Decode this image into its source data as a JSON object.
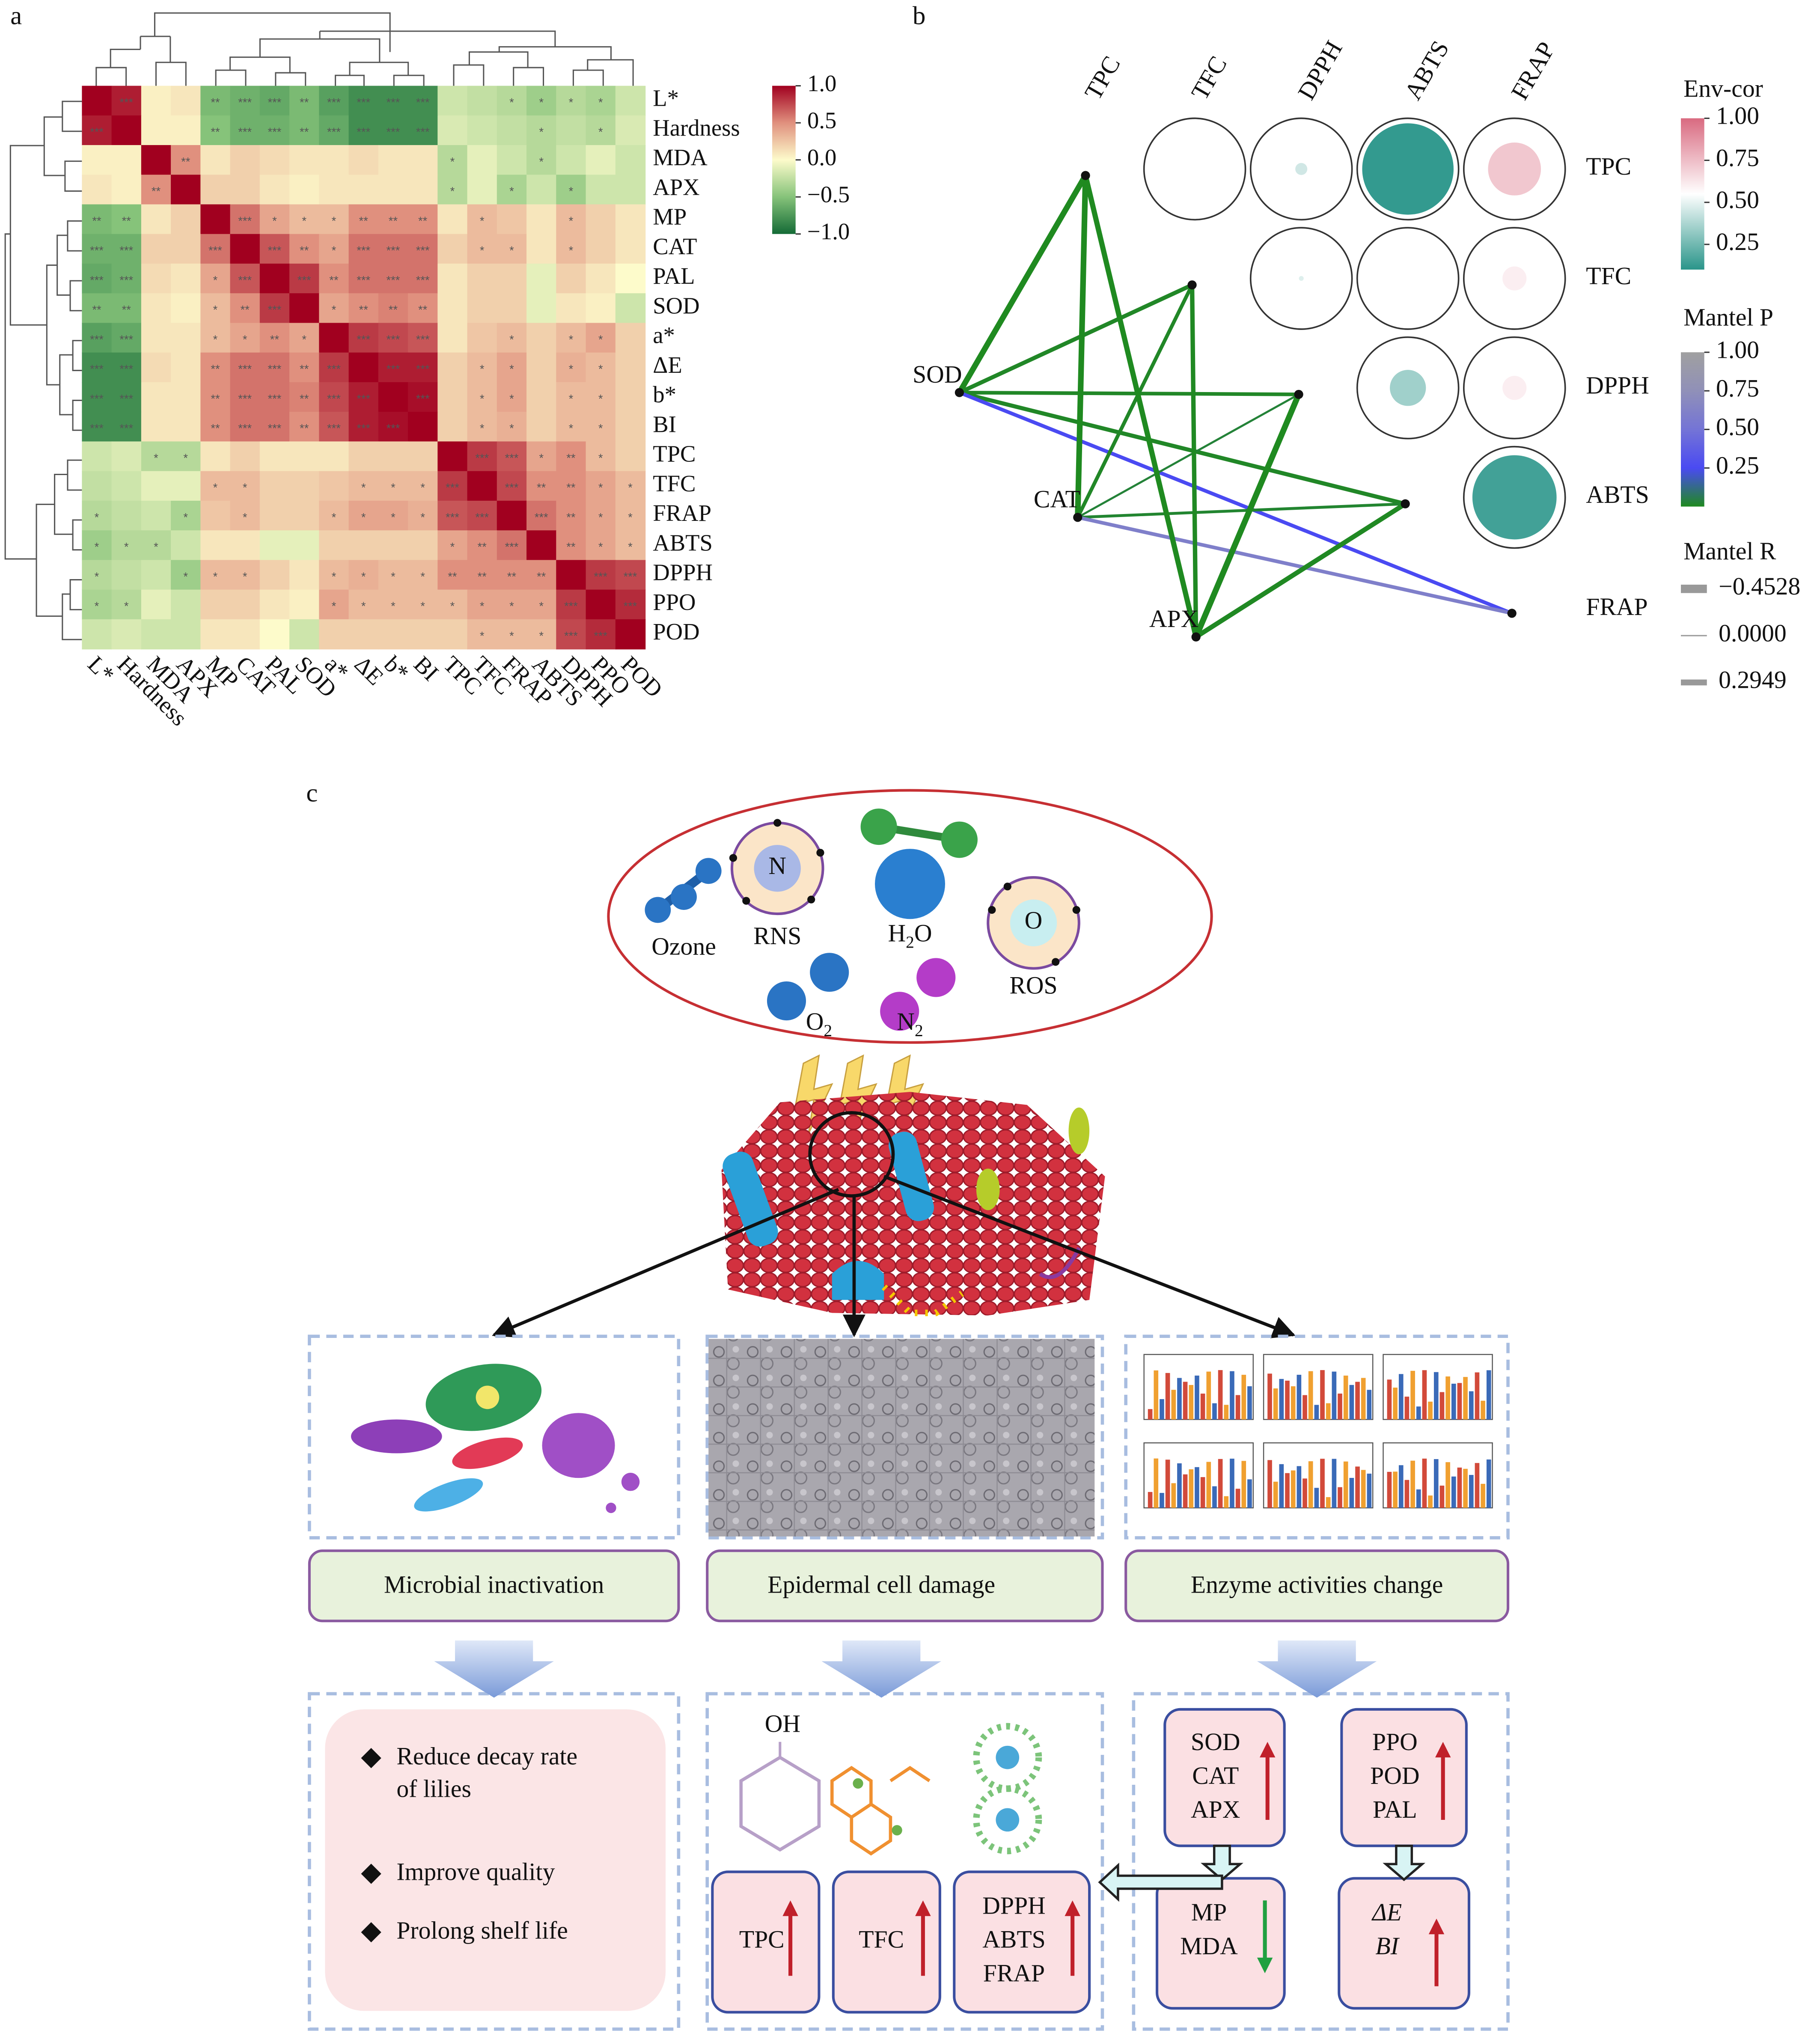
{
  "chart_data": [
    {
      "type": "heatmap",
      "panel": "a",
      "rows": [
        "L*",
        "Hardness",
        "MDA",
        "APX",
        "MP",
        "CAT",
        "PAL",
        "SOD",
        "a*",
        "ΔE",
        "b*",
        "BI",
        "TPC",
        "TFC",
        "FRAP",
        "ABTS",
        "DPPH",
        "PPO",
        "POD"
      ],
      "columns": [
        "L*",
        "Hardness",
        "MDA",
        "APX",
        "MP",
        "CAT",
        "PAL",
        "SOD",
        "a*",
        "ΔE",
        "b*",
        "BI",
        "TPC",
        "TFC",
        "FRAP",
        "ABTS",
        "DPPH",
        "PPO",
        "POD"
      ],
      "values": [
        [
          1,
          0.9,
          0.05,
          0.1,
          -0.55,
          -0.6,
          -0.65,
          -0.55,
          -0.7,
          -0.8,
          -0.8,
          -0.8,
          -0.2,
          -0.25,
          -0.3,
          -0.4,
          -0.3,
          -0.35,
          -0.2
        ],
        [
          0.9,
          1,
          0.05,
          0.05,
          -0.5,
          -0.6,
          -0.6,
          -0.55,
          -0.65,
          -0.8,
          -0.8,
          -0.8,
          -0.15,
          -0.2,
          -0.25,
          -0.3,
          -0.25,
          -0.3,
          -0.15
        ],
        [
          0.05,
          0.05,
          1,
          0.5,
          0.1,
          0.2,
          0.15,
          0.1,
          0.1,
          0.15,
          0.1,
          0.1,
          -0.3,
          -0.1,
          -0.2,
          -0.3,
          -0.2,
          -0.1,
          -0.2
        ],
        [
          0.1,
          0.05,
          0.5,
          1,
          0.2,
          0.2,
          0.1,
          0.05,
          0.1,
          0.1,
          0.1,
          0.1,
          -0.3,
          -0.1,
          -0.35,
          -0.2,
          -0.4,
          -0.2,
          -0.2
        ],
        [
          -0.55,
          -0.5,
          0.1,
          0.2,
          1,
          0.6,
          0.4,
          0.3,
          0.3,
          0.5,
          0.5,
          0.5,
          0.1,
          0.3,
          0.25,
          0.1,
          0.3,
          0.2,
          0.1
        ],
        [
          -0.6,
          -0.6,
          0.2,
          0.2,
          0.6,
          1,
          0.7,
          0.5,
          0.4,
          0.6,
          0.6,
          0.6,
          0.2,
          0.3,
          0.3,
          0.1,
          0.3,
          0.2,
          0.1
        ],
        [
          -0.65,
          -0.6,
          0.15,
          0.1,
          0.4,
          0.7,
          1,
          0.8,
          0.5,
          0.6,
          0.6,
          0.6,
          0.1,
          0.2,
          0.2,
          -0.1,
          0.2,
          0.1,
          0
        ],
        [
          -0.55,
          -0.55,
          0.1,
          0.05,
          0.3,
          0.5,
          0.8,
          1,
          0.4,
          0.5,
          0.55,
          0.5,
          0.1,
          0.2,
          0.2,
          -0.1,
          0.1,
          0.05,
          -0.2
        ],
        [
          -0.7,
          -0.65,
          0.1,
          0.1,
          0.3,
          0.4,
          0.5,
          0.4,
          1,
          0.8,
          0.75,
          0.7,
          0.1,
          0.25,
          0.3,
          0.2,
          0.3,
          0.4,
          0.2
        ],
        [
          -0.8,
          -0.8,
          0.15,
          0.1,
          0.5,
          0.6,
          0.6,
          0.5,
          0.8,
          1,
          0.9,
          0.9,
          0.2,
          0.3,
          0.4,
          0.2,
          0.35,
          0.3,
          0.2
        ],
        [
          -0.8,
          -0.8,
          0.1,
          0.1,
          0.5,
          0.6,
          0.6,
          0.55,
          0.75,
          0.9,
          1,
          0.95,
          0.2,
          0.3,
          0.4,
          0.2,
          0.3,
          0.3,
          0.2
        ],
        [
          -0.8,
          -0.8,
          0.1,
          0.1,
          0.5,
          0.6,
          0.6,
          0.5,
          0.7,
          0.9,
          0.95,
          1,
          0.2,
          0.3,
          0.35,
          0.2,
          0.3,
          0.3,
          0.2
        ],
        [
          -0.2,
          -0.15,
          -0.3,
          -0.3,
          0.1,
          0.2,
          0.1,
          0.1,
          0.1,
          0.2,
          0.2,
          0.2,
          1,
          0.8,
          0.7,
          0.4,
          0.5,
          0.3,
          0.2
        ],
        [
          -0.25,
          -0.2,
          -0.1,
          -0.1,
          0.3,
          0.3,
          0.2,
          0.2,
          0.25,
          0.3,
          0.3,
          0.3,
          0.8,
          1,
          0.75,
          0.5,
          0.5,
          0.4,
          0.3
        ],
        [
          -0.3,
          -0.25,
          -0.2,
          -0.35,
          0.25,
          0.3,
          0.2,
          0.2,
          0.3,
          0.4,
          0.4,
          0.35,
          0.7,
          0.75,
          1,
          0.6,
          0.5,
          0.4,
          0.3
        ],
        [
          -0.4,
          -0.3,
          -0.3,
          -0.2,
          0.1,
          0.1,
          -0.1,
          -0.1,
          0.2,
          0.2,
          0.2,
          0.2,
          0.4,
          0.5,
          0.6,
          1,
          0.5,
          0.4,
          0.3
        ],
        [
          -0.3,
          -0.25,
          -0.2,
          -0.4,
          0.3,
          0.3,
          0.2,
          0.1,
          0.3,
          0.35,
          0.3,
          0.3,
          0.5,
          0.5,
          0.5,
          0.5,
          1,
          0.8,
          0.75
        ],
        [
          -0.35,
          -0.3,
          -0.1,
          -0.2,
          0.2,
          0.2,
          0.1,
          0.05,
          0.4,
          0.3,
          0.3,
          0.3,
          0.3,
          0.4,
          0.4,
          0.4,
          0.8,
          1,
          0.85
        ],
        [
          -0.2,
          -0.15,
          -0.2,
          -0.2,
          0.1,
          0.1,
          0,
          -0.2,
          0.2,
          0.2,
          0.2,
          0.2,
          0.2,
          0.3,
          0.3,
          0.3,
          0.75,
          0.85,
          1
        ]
      ],
      "cell_labels": [
        [
          null,
          "***",
          null,
          null,
          "**",
          "***",
          "***",
          "**",
          "***",
          "***",
          "***",
          "***",
          null,
          null,
          "*",
          "*",
          "*",
          "*",
          null
        ],
        [
          "***",
          null,
          null,
          null,
          "**",
          "***",
          "***",
          "**",
          "***",
          "***",
          "***",
          "***",
          null,
          null,
          null,
          "*",
          null,
          "*",
          null
        ],
        [
          null,
          null,
          null,
          "**",
          null,
          null,
          null,
          null,
          null,
          null,
          null,
          null,
          "*",
          null,
          null,
          "*",
          null,
          null,
          null
        ],
        [
          null,
          null,
          "**",
          null,
          null,
          null,
          null,
          null,
          null,
          null,
          null,
          null,
          "*",
          null,
          "*",
          null,
          "*",
          null,
          null
        ],
        [
          "**",
          "**",
          null,
          null,
          null,
          "***",
          "*",
          "*",
          "*",
          "**",
          "**",
          "**",
          null,
          "*",
          null,
          null,
          "*",
          null,
          null
        ],
        [
          "***",
          "***",
          null,
          null,
          "***",
          null,
          "***",
          "**",
          "*",
          "***",
          "***",
          "***",
          null,
          "*",
          "*",
          null,
          "*",
          null,
          null
        ],
        [
          "***",
          "***",
          null,
          null,
          "*",
          "***",
          null,
          "***",
          "**",
          "***",
          "***",
          "***",
          null,
          null,
          null,
          null,
          null,
          null,
          null
        ],
        [
          "**",
          "**",
          null,
          null,
          "*",
          "**",
          "***",
          null,
          "*",
          "**",
          "**",
          "**",
          null,
          null,
          null,
          null,
          null,
          null,
          null
        ],
        [
          "***",
          "***",
          null,
          null,
          "*",
          "*",
          "**",
          "*",
          null,
          "***",
          "***",
          "***",
          null,
          null,
          "*",
          null,
          "*",
          "*",
          null
        ],
        [
          "***",
          "***",
          null,
          null,
          "**",
          "***",
          "***",
          "**",
          "***",
          null,
          "***",
          "***",
          null,
          "*",
          "*",
          null,
          "*",
          "*",
          null
        ],
        [
          "***",
          "***",
          null,
          null,
          "**",
          "***",
          "***",
          "**",
          "***",
          "***",
          null,
          "***",
          null,
          "*",
          "*",
          null,
          "*",
          "*",
          null
        ],
        [
          "***",
          "***",
          null,
          null,
          "**",
          "***",
          "***",
          "**",
          "***",
          "***",
          "***",
          null,
          null,
          "*",
          "*",
          null,
          "*",
          "*",
          null
        ],
        [
          null,
          null,
          "*",
          "*",
          null,
          null,
          null,
          null,
          null,
          null,
          null,
          null,
          null,
          "***",
          "***",
          "*",
          "**",
          "*",
          null
        ],
        [
          null,
          null,
          null,
          null,
          "*",
          "*",
          null,
          null,
          null,
          "*",
          "*",
          "*",
          "***",
          null,
          "***",
          "**",
          "**",
          "*",
          "*"
        ],
        [
          "*",
          null,
          null,
          "*",
          null,
          "*",
          null,
          null,
          "*",
          "*",
          "*",
          "*",
          "***",
          "***",
          null,
          "***",
          "**",
          "*",
          "*"
        ],
        [
          "*",
          "*",
          "*",
          null,
          null,
          null,
          null,
          null,
          null,
          null,
          null,
          null,
          "*",
          "**",
          "***",
          null,
          "**",
          "*",
          "*"
        ],
        [
          "*",
          null,
          null,
          "*",
          "*",
          "*",
          null,
          null,
          "*",
          "*",
          "*",
          "*",
          "**",
          "**",
          "**",
          "**",
          null,
          "***",
          "***"
        ],
        [
          "*",
          "*",
          null,
          null,
          null,
          null,
          null,
          null,
          "*",
          "*",
          "*",
          "*",
          "*",
          "*",
          "*",
          "*",
          "***",
          null,
          "***"
        ],
        [
          null,
          null,
          null,
          null,
          null,
          null,
          null,
          null,
          null,
          null,
          null,
          null,
          null,
          "*",
          "*",
          "*",
          "***",
          "***",
          null
        ]
      ],
      "colorscale": [
        "#146b36",
        "#86c37a",
        "#fdfbcb",
        "#e0907e",
        "#a1001f"
      ],
      "zlim": [
        -1,
        1
      ],
      "zticks": [
        {
          "value": 1,
          "label": "1.0"
        },
        {
          "value": 0.5,
          "label": "0.5"
        },
        {
          "value": 0,
          "label": "0.0"
        },
        {
          "value": -0.5,
          "label": "−0.5"
        },
        {
          "value": -1,
          "label": "−1.0"
        }
      ]
    },
    {
      "type": "mantel",
      "panel": "b",
      "variables": [
        "TPC",
        "TFC",
        "DPPH",
        "ABTS",
        "FRAP"
      ],
      "correlations": [
        [
          null,
          0.5,
          0.45,
          0.12,
          0.72
        ],
        [
          null,
          null,
          0.48,
          0.5,
          0.6
        ],
        [
          null,
          null,
          null,
          0.35,
          0.6
        ],
        [
          null,
          null,
          null,
          null,
          0.15
        ],
        [
          null,
          null,
          null,
          null,
          null
        ]
      ],
      "predictors": [
        "SOD",
        "CAT",
        "APX"
      ],
      "links": [
        {
          "from": "SOD",
          "to": "TPC",
          "r": 0.28,
          "p": 0.001
        },
        {
          "from": "SOD",
          "to": "TFC",
          "r": 0.18,
          "p": 0.01
        },
        {
          "from": "SOD",
          "to": "DPPH",
          "r": 0.15,
          "p": 0.01
        },
        {
          "from": "SOD",
          "to": "ABTS",
          "r": 0.18,
          "p": 0.01
        },
        {
          "from": "SOD",
          "to": "FRAP",
          "r": 0.15,
          "p": 0.25
        },
        {
          "from": "CAT",
          "to": "TPC",
          "r": 0.28,
          "p": 0.001
        },
        {
          "from": "CAT",
          "to": "TFC",
          "r": 0.15,
          "p": 0.01
        },
        {
          "from": "CAT",
          "to": "DPPH",
          "r": 0.05,
          "p": 0.03
        },
        {
          "from": "CAT",
          "to": "ABTS",
          "r": 0.1,
          "p": 0.02
        },
        {
          "from": "CAT",
          "to": "FRAP",
          "r": 0.15,
          "p": 0.6
        },
        {
          "from": "APX",
          "to": "TPC",
          "r": 0.25,
          "p": 0.001
        },
        {
          "from": "APX",
          "to": "TFC",
          "r": 0.2,
          "p": 0.005
        },
        {
          "from": "APX",
          "to": "DPPH",
          "r": 0.29,
          "p": 0.001
        },
        {
          "from": "APX",
          "to": "ABTS",
          "r": 0.22,
          "p": 0.005
        }
      ],
      "env_cor": {
        "title": "Env-cor",
        "lim": [
          0.1,
          1
        ],
        "colors": [
          "#2a958a",
          "#ffffff",
          "#d96a80"
        ],
        "ticks": [
          {
            "value": 1,
            "label": "1.00"
          },
          {
            "value": 0.75,
            "label": "0.75"
          },
          {
            "value": 0.5,
            "label": "0.50"
          },
          {
            "value": 0.25,
            "label": "0.25"
          }
        ]
      },
      "mantel_p": {
        "title": "Mantel P",
        "lim": [
          0,
          1
        ],
        "colors": [
          "#1f8a1f",
          "#4a4af2",
          "#7474d6",
          "#9090b8",
          "#a0a0a0"
        ],
        "ticks": [
          {
            "value": 1,
            "label": "1.00"
          },
          {
            "value": 0.75,
            "label": "0.75"
          },
          {
            "value": 0.5,
            "label": "0.50"
          },
          {
            "value": 0.25,
            "label": "0.25"
          }
        ]
      },
      "mantel_r": {
        "title": "Mantel R",
        "keys": [
          {
            "value": -0.4528,
            "label": "−0.4528"
          },
          {
            "value": 0,
            "label": "0.0000"
          },
          {
            "value": 0.2949,
            "label": "0.2949"
          }
        ]
      }
    }
  ],
  "panel_c": {
    "label": "c",
    "species": [
      "Ozone",
      "RNS",
      "ROS"
    ],
    "atoms": [
      "N",
      "O"
    ],
    "molecules": [
      [
        "H",
        "2",
        "O"
      ],
      [
        "O",
        "2"
      ],
      [
        "N",
        "2"
      ]
    ],
    "effects": [
      "Microbial inactivation",
      "Epidermal cell damage",
      "Enzyme activities change"
    ],
    "outcomes": [
      [
        "Reduce decay rate",
        "of lilies"
      ],
      [
        "Improve quality"
      ],
      [
        "Prolong shelf life"
      ]
    ],
    "phenol": "OH",
    "antioxidants": [
      [
        "TPC"
      ],
      [
        "TFC"
      ],
      [
        "DPPH",
        "ABTS",
        "FRAP"
      ]
    ],
    "enzymes": [
      [
        "SOD",
        "CAT",
        "APX"
      ],
      [
        "PPO",
        "POD",
        "PAL"
      ],
      [
        "MP",
        "MDA"
      ],
      [
        "ΔE",
        "BI"
      ]
    ]
  }
}
